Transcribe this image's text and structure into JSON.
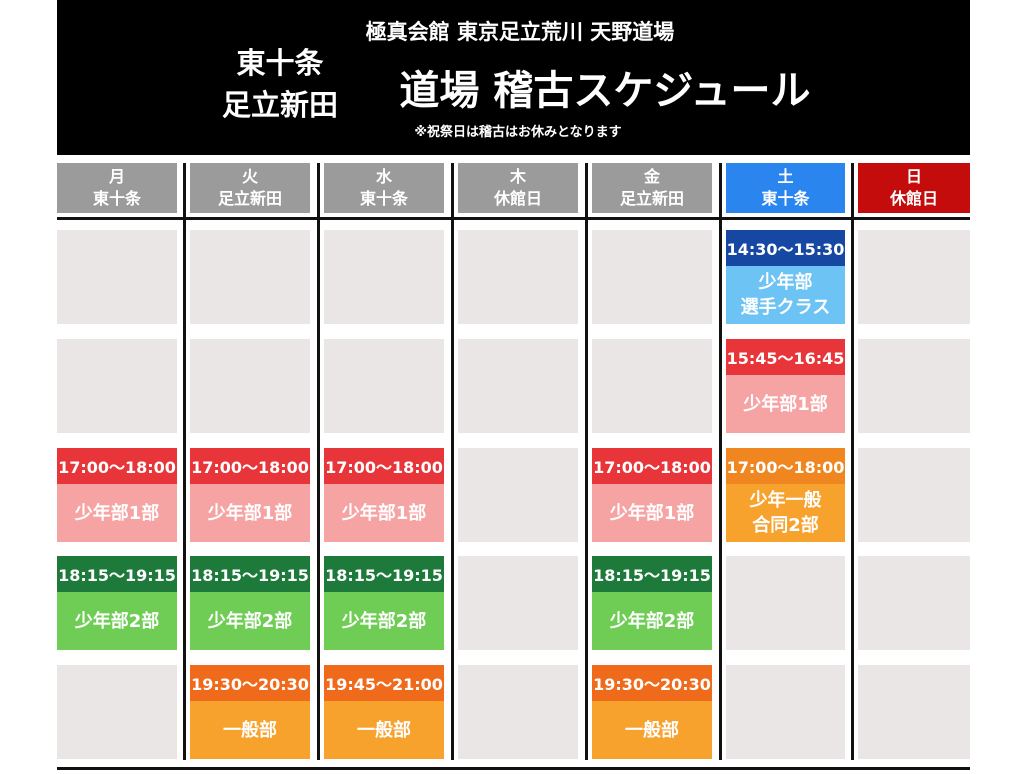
{
  "header": {
    "org": "極真会館 東京足立荒川 天野道場",
    "locations": [
      "東十条",
      "足立新田"
    ],
    "title": "道場 稽古スケジュール",
    "note": "※祝祭日は稽古はお休みとなります"
  },
  "days": [
    {
      "day": "月",
      "location": "東十条",
      "color": "#9b9b9b"
    },
    {
      "day": "火",
      "location": "足立新田",
      "color": "#9b9b9b"
    },
    {
      "day": "水",
      "location": "東十条",
      "color": "#9b9b9b"
    },
    {
      "day": "木",
      "location": "休館日",
      "color": "#9b9b9b"
    },
    {
      "day": "金",
      "location": "足立新田",
      "color": "#9b9b9b"
    },
    {
      "day": "土",
      "location": "東十条",
      "color": "#2a86ee"
    },
    {
      "day": "日",
      "location": "休館日",
      "color": "#c40c0c"
    }
  ],
  "rows": [
    [
      null,
      null,
      null,
      null,
      null,
      {
        "time": "14:30〜15:30",
        "label": [
          "少年部",
          "選手クラス"
        ],
        "time_color": "#1547a3",
        "body_color": "#6cc3f4"
      },
      null
    ],
    [
      null,
      null,
      null,
      null,
      null,
      {
        "time": "15:45〜16:45",
        "label": [
          "少年部1部"
        ],
        "time_color": "#e8353a",
        "body_color": "#f6a3a3"
      },
      null
    ],
    [
      {
        "time": "17:00〜18:00",
        "label": [
          "少年部1部"
        ],
        "time_color": "#e8353a",
        "body_color": "#f6a3a3"
      },
      {
        "time": "17:00〜18:00",
        "label": [
          "少年部1部"
        ],
        "time_color": "#e8353a",
        "body_color": "#f6a3a3"
      },
      {
        "time": "17:00〜18:00",
        "label": [
          "少年部1部"
        ],
        "time_color": "#e8353a",
        "body_color": "#f6a3a3"
      },
      null,
      {
        "time": "17:00〜18:00",
        "label": [
          "少年部1部"
        ],
        "time_color": "#e8353a",
        "body_color": "#f6a3a3"
      },
      {
        "time": "17:00〜18:00",
        "label": [
          "少年一般",
          "合同2部"
        ],
        "time_color": "#f08620",
        "body_color": "#f8a22e"
      },
      null
    ],
    [
      {
        "time": "18:15〜19:15",
        "label": [
          "少年部2部"
        ],
        "time_color": "#1d7a3b",
        "body_color": "#6fcd56"
      },
      {
        "time": "18:15〜19:15",
        "label": [
          "少年部2部"
        ],
        "time_color": "#1d7a3b",
        "body_color": "#6fcd56"
      },
      {
        "time": "18:15〜19:15",
        "label": [
          "少年部2部"
        ],
        "time_color": "#1d7a3b",
        "body_color": "#6fcd56"
      },
      null,
      {
        "time": "18:15〜19:15",
        "label": [
          "少年部2部"
        ],
        "time_color": "#1d7a3b",
        "body_color": "#6fcd56"
      },
      null,
      null
    ],
    [
      null,
      {
        "time": "19:30〜20:30",
        "label": [
          "一般部"
        ],
        "time_color": "#f06a1c",
        "body_color": "#f8a22e"
      },
      {
        "time": "19:45〜21:00",
        "label": [
          "一般部"
        ],
        "time_color": "#f06a1c",
        "body_color": "#f8a22e"
      },
      null,
      {
        "time": "19:30〜20:30",
        "label": [
          "一般部"
        ],
        "time_color": "#f06a1c",
        "body_color": "#f8a22e"
      },
      null,
      null
    ]
  ]
}
